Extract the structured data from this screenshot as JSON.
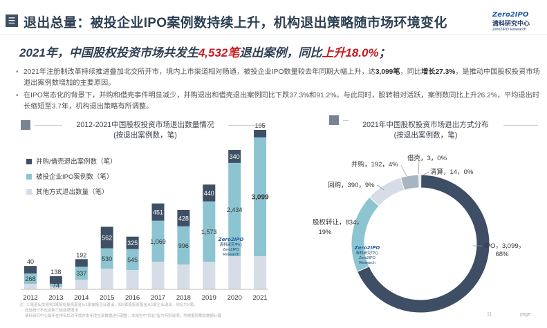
{
  "header": {
    "title": "退出总量：被投企业IPO案例数持续上升，机构退出策略随市场环境变化",
    "logo_text": "Zero2IPO",
    "logo_zh": "清科研究中心",
    "logo_en": "Zero2IPO Research"
  },
  "headline": {
    "part1": "2021年，中国股权投资市场共发生",
    "highlight1": "4,532笔",
    "part2": "退出案例，同比",
    "highlight2": "上升18.0%",
    "part3": "；"
  },
  "bullets": [
    {
      "text1": "2021年注册制改革持续推进叠加北交所开市，境内上市渠道相对畅通，被投企业IPO数量较去年同期大幅上升，达",
      "bold1": "3,099笔",
      "text2": "，同比",
      "bold2": "增长27.3%",
      "text3": "，是推动中国股权投资市场退出案例数增加的主要原因。"
    },
    {
      "text1": "在IPO常态化的背景下，并购和借壳事件明显减少，并购退出和借壳退出案例同比下跌37.3%和91.2%。与此同时，股转相对活跃，案例数同比上升26.2%，平均退出时长缩短至3.7年，机构退出策略有所调整。"
    }
  ],
  "left_chart_title": [
    "2012-2021中国股权投资市场退出数量情况",
    "(按退出案例数，笔)"
  ],
  "right_chart_title": [
    "2021年中国股权投资市场退出方式分布",
    "(按退出案例数，笔)"
  ],
  "legend": [
    "并购/借壳退出案例数（笔）",
    "被投企业IPO案例数（笔）",
    "其他方式退出数量（笔）"
  ],
  "chart_data": [
    {
      "type": "bar",
      "stacked": true,
      "categories": [
        "2012",
        "2013",
        "2014",
        "2015",
        "2016",
        "2017",
        "2018",
        "2019",
        "2020",
        "2021"
      ],
      "series": [
        {
          "name": "其他方式退出数量（笔）",
          "color": "#d6dde6",
          "values": [
            null,
            null,
            null,
            null,
            null,
            null,
            null,
            null,
            null,
            null
          ]
        },
        {
          "name": "被投企业IPO案例数（笔）",
          "color": "#8cc5d1",
          "values": [
            268,
            74,
            337,
            530,
            545,
            1069,
            996,
            1573,
            2434,
            3099
          ]
        },
        {
          "name": "并购/借壳退出案例数（笔）",
          "color": "#3f5066",
          "values": [
            40,
            138,
            192,
            562,
            325,
            451,
            428,
            440,
            340,
            195
          ]
        }
      ],
      "value_label_text": [
        "268",
        "74",
        "337",
        "530",
        "545",
        "1,069",
        "996",
        "1,573",
        "2,434",
        "3,099"
      ],
      "top_label_text": [
        "40",
        "138",
        "192",
        "562",
        "325",
        "451",
        "428",
        "440",
        "340",
        "195"
      ]
    },
    {
      "type": "pie",
      "donut": true,
      "slices": [
        {
          "label": "IPO",
          "value": 3099,
          "percent": "68%",
          "color": "#3d4e65"
        },
        {
          "label": "股权转让",
          "value": 834,
          "percent": "19%",
          "color": "#8cc5d1"
        },
        {
          "label": "回购",
          "value": 390,
          "percent": "9%",
          "color": "#d6dde6"
        },
        {
          "label": "并购",
          "value": 192,
          "percent": "4%",
          "color": "#a9b4c2"
        },
        {
          "label": "借壳",
          "value": 3,
          "percent": "0%",
          "color": "#6e7d90"
        },
        {
          "label": "清算",
          "value": 14,
          "percent": "0%",
          "color": "#b9c3cf"
        }
      ],
      "slice_label_text": [
        "IPO，3,099，",
        "68%",
        "股权转让，834，",
        "19%",
        "回购，390，9%",
        "并购，192，4%",
        "借壳，3，0%",
        "清算，14，0%"
      ]
    }
  ],
  "notes": [
    "注：1.笔退出交易则1笔股权投资基金从1家被投企业退出，如X家股投资基金从1家企业退出，则记为X笔。",
    "此处统计不包含新三板挂牌退出",
    "清科研究中心每年在排名后对年度时本年度全部数据进行调整，本报告中“同比”皆为特别说明，均根据同期总数据计算"
  ],
  "page_number": "11",
  "page_label": "page",
  "watermark": {
    "logo": "Zero2IPO",
    "zh": "清科研究中心",
    "en": "Zero2IPO Research"
  }
}
